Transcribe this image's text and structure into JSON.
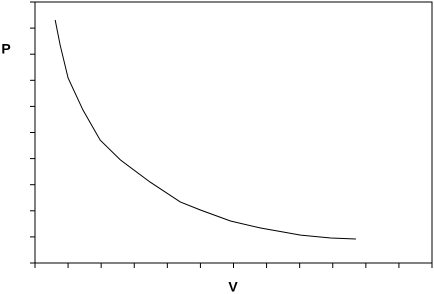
{
  "chart_data": {
    "type": "line",
    "x_label": "V",
    "y_label": "P",
    "x": [
      0.61,
      0.76,
      1.0,
      1.45,
      1.97,
      2.58,
      3.48,
      4.39,
      5.0,
      5.91,
      6.82,
      8.03,
      8.94,
      9.7
    ],
    "series": [
      {
        "color": "#000000",
        "values": [
          9.31,
          8.35,
          7.09,
          5.86,
          4.71,
          3.95,
          3.1,
          2.34,
          2.03,
          1.61,
          1.34,
          1.07,
          0.96,
          0.92
        ]
      }
    ],
    "xlim": [
      0,
      12
    ],
    "xticks": [
      0,
      1,
      2,
      3,
      4,
      5,
      6,
      7,
      8,
      9,
      10,
      11,
      12
    ],
    "ylim": [
      0,
      10
    ],
    "yticks": [
      0,
      1,
      2,
      3,
      4,
      5,
      6,
      7,
      8,
      9,
      10
    ],
    "grid": false
  }
}
